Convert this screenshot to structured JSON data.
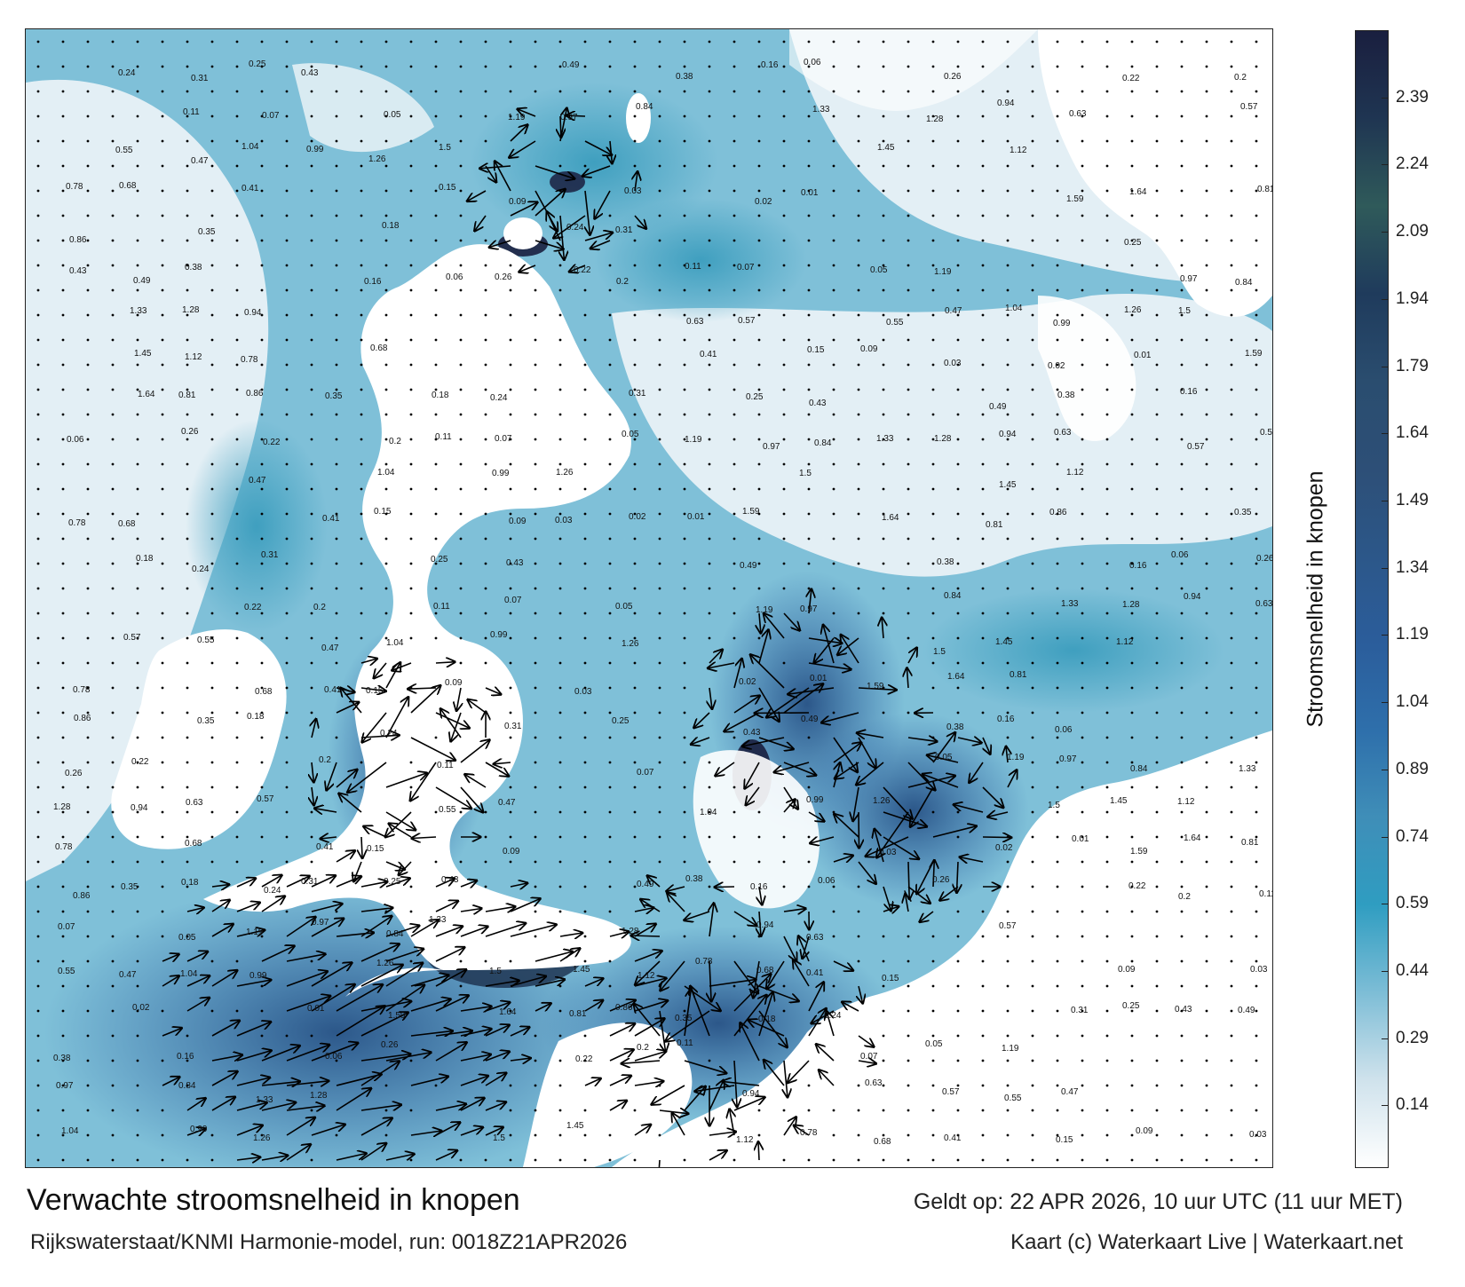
{
  "map": {
    "region": "North Sea and English Channel",
    "field": "Stroomsnelheid",
    "colors": {
      "land": "#ffffff",
      "sea_weak": "#dbeaf2",
      "sea_mid": "#3f9fbf",
      "sea_strong": "#2c64a6",
      "sea_peak": "#1a1f3f",
      "arrow": "#000000"
    },
    "sample_labels": [
      "0.24",
      "0.31",
      "0.25",
      "0.43",
      "0.49",
      "0.38",
      "0.16",
      "0.06",
      "0.26",
      "0.22",
      "0.2",
      "0.11",
      "0.07",
      "0.05",
      "1.19",
      "0.97",
      "0.84",
      "1.33",
      "1.28",
      "0.94",
      "0.63",
      "0.57",
      "0.55",
      "0.47",
      "1.04",
      "0.99",
      "1.26",
      "1.5",
      "1.45",
      "1.12",
      "0.78",
      "0.68",
      "0.41",
      "0.15",
      "0.09",
      "0.03",
      "0.02",
      "0.01",
      "1.59",
      "1.64",
      "0.81",
      "0.86",
      "0.35",
      "0.18"
    ]
  },
  "colorbar": {
    "label": "Stroomsnelheid in knopen",
    "ticks": [
      "2.39",
      "2.24",
      "2.09",
      "1.94",
      "1.79",
      "1.64",
      "1.49",
      "1.34",
      "1.19",
      "1.04",
      "0.89",
      "0.74",
      "0.59",
      "0.44",
      "0.29",
      "0.14"
    ],
    "tick_values": [
      2.39,
      2.24,
      2.09,
      1.94,
      1.79,
      1.64,
      1.49,
      1.34,
      1.19,
      1.04,
      0.89,
      0.74,
      0.59,
      0.44,
      0.29,
      0.14
    ],
    "range": [
      0.0,
      2.54
    ],
    "colors": [
      "#ffffff",
      "#cfe2ec",
      "#7dbdd6",
      "#2f9dc1",
      "#3f8eb8",
      "#2e6fab",
      "#2b5d9b",
      "#2c5789",
      "#2d4f77",
      "#2a4d6f",
      "#1f3b5c",
      "#2f5a5a",
      "#1f3552",
      "#1a1f3f"
    ]
  },
  "texts": {
    "title": "Verwachte stroomsnelheid in knopen",
    "subtitle": "Rijkswaterstaat/KNMI Harmonie-model, run: 0018Z21APR2026",
    "valid": "Geldt op: 22 APR 2026, 10 uur UTC (11 uur MET)",
    "credit": "Kaart (c) Waterkaart Live | Waterkaart.net"
  }
}
